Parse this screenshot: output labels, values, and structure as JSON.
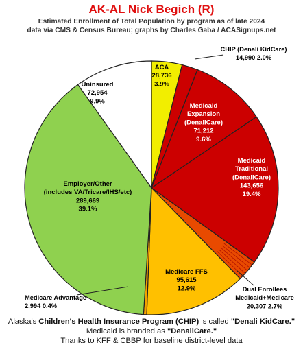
{
  "header": {
    "title": "AK-AL Nick Begich (R)",
    "subtitle_line1": "Estimated Enrollment of Total Population by program as of late 2024",
    "subtitle_line2": "data via CMS & Census Bureau; graphs by Charles Gaba / ACASignups.net"
  },
  "chart_data": {
    "type": "pie",
    "title": "AK-AL Nick Begich (R)",
    "slices": [
      {
        "name": "ACA",
        "value": 28736,
        "value_label": "28,736",
        "percent": "3.9%",
        "color": "#f2ee00",
        "label_color": "#000000"
      },
      {
        "name": "CHIP (Denali KidCare)",
        "value": 14990,
        "value_label": "14,990",
        "percent": "2.0%",
        "color": "#cc0000",
        "label_color": "#000000"
      },
      {
        "name": "Medicaid Expansion (DenaliCare)",
        "value": 71212,
        "value_label": "71,212",
        "percent": "9.6%",
        "color": "#cc0000",
        "label_color": "#ffffff"
      },
      {
        "name": "Medicaid Traditional (DenaliCare)",
        "value": 143656,
        "value_label": "143,656",
        "percent": "19.4%",
        "color": "#cc0000",
        "label_color": "#ffffff"
      },
      {
        "name": "Dual Enrollees Medicaid+Medicare",
        "value": 20307,
        "value_label": "20,307",
        "percent": "2.7%",
        "color": "#e84a00",
        "label_color": "#000000"
      },
      {
        "name": "Medicare FFS",
        "value": 95615,
        "value_label": "95,615",
        "percent": "12.9%",
        "color": "#ffc000",
        "label_color": "#000000"
      },
      {
        "name": "Medicare Advantage",
        "value": 2994,
        "value_label": "2,994",
        "percent": "0.4%",
        "color": "#f5a000",
        "label_color": "#000000"
      },
      {
        "name": "Employer/Other (includes VA/Tricare/IHS/etc)",
        "value": 289669,
        "value_label": "289,669",
        "percent": "39.1%",
        "color": "#8fd14f",
        "label_color": "#000000"
      },
      {
        "name": "Uninsured",
        "value": 72954,
        "value_label": "72,954",
        "percent": "9.9%",
        "color": "#ffffff",
        "label_color": "#000000"
      }
    ],
    "labels": {
      "aca": [
        "ACA",
        "28,736",
        "3.9%"
      ],
      "chip": [
        "CHIP (Denali KidCare)",
        "14,990  2.0%"
      ],
      "medicaid_expansion": [
        "Medicaid",
        "Expansion",
        "(DenaliCare)",
        "71,212",
        "9.6%"
      ],
      "medicaid_traditional": [
        "Medicaid",
        "Traditional",
        "(DenaliCare)",
        "143,656",
        "19.4%"
      ],
      "dual": [
        "Dual Enrollees",
        "Medicaid+Medicare",
        "20,307  2.7%"
      ],
      "medicare_ffs": [
        "Medicare FFS",
        "95,615",
        "12.9%"
      ],
      "medicare_advantage": [
        "Medicare Advantage",
        "2,994  0.4%"
      ],
      "employer": [
        "Employer/Other",
        "(includes VA/Tricare/IHS/etc)",
        "289,669",
        "39.1%"
      ],
      "uninsured": [
        "Uninsured",
        "72,954",
        "9.9%"
      ]
    }
  },
  "footer": {
    "line1_a": "Alaska's ",
    "line1_b": "Children's Health Insurance Program (CHIP)",
    "line1_c": " is called ",
    "line1_d": "\"Denali KidCare.\"",
    "line2_a": "Medicaid is branded as ",
    "line2_b": "\"DenaliCare.\"",
    "line3": "Thanks to KFF & CBBP for baseline district-level data"
  }
}
